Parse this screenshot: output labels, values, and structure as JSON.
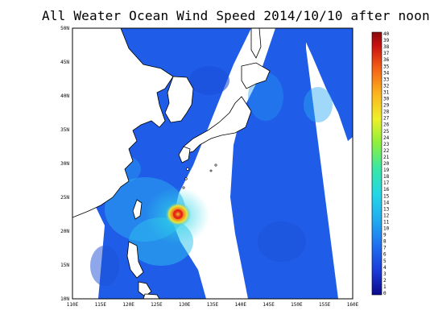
{
  "title": "All Weater Ocean Wind Speed 2014/10/10 after noon",
  "lat_labels": [
    "50N",
    "45N",
    "40N",
    "35N",
    "30N",
    "25N",
    "20N",
    "15N",
    "10N"
  ],
  "lon_labels": [
    "110E",
    "115E",
    "120E",
    "125E",
    "130E",
    "135E",
    "140E",
    "145E",
    "150E",
    "155E",
    "160E"
  ],
  "colorbar": {
    "labels": [
      "40",
      "39",
      "38",
      "37",
      "36",
      "35",
      "34",
      "33",
      "32",
      "31",
      "30",
      "29",
      "28",
      "27",
      "26",
      "25",
      "24",
      "23",
      "22",
      "21",
      "20",
      "19",
      "18",
      "17",
      "16",
      "15",
      "14",
      "13",
      "12",
      "11",
      "10",
      "9",
      "8",
      "7",
      "6",
      "5",
      "4",
      "3",
      "2",
      "1",
      "0"
    ],
    "min": 0,
    "max": 40,
    "colors": [
      "#0a0a8c",
      "#1a3ad8",
      "#1f6cf0",
      "#21a9f0",
      "#22d6e8",
      "#39e7a6",
      "#8ff03a",
      "#eef02a",
      "#fdb11d",
      "#f25a16",
      "#c81111",
      "#8a0a0a"
    ]
  },
  "colors": {
    "ocean_low": "#1f5ce8",
    "ocean_mid": "#2aa8f0",
    "land": "#ffffff",
    "coast": "#000000",
    "storm_core": "#d81818",
    "storm_ring": "#f5c020"
  }
}
